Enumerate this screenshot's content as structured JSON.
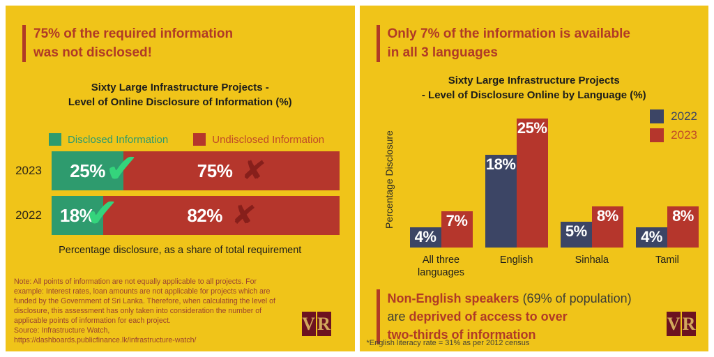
{
  "colors": {
    "yellow": "#F0C419",
    "headline-red": "#B03A26",
    "bar-red": "#B5362C",
    "bar-green": "#2E9B6E",
    "bar-navy": "#3C4565",
    "check-green": "#34D47C",
    "cross-maroon": "#871F1B",
    "logo-maroon": "#6C1220",
    "logo-gold": "#D2A85C",
    "note-red": "#9A4330",
    "text-black": "#1D1D1B"
  },
  "icons": {
    "check": "✔",
    "cross": "✘"
  },
  "brand": {
    "letter_v": "V",
    "letter_r": "R"
  },
  "left": {
    "headline": "75% of the required information\nwas not disclosed!",
    "chart_title": "Sixty Large Infrastructure Projects -\nLevel of Online Disclosure of Information (%)",
    "legend": {
      "disclosed": "Disclosed Information",
      "undisclosed": "Undisclosed Information"
    },
    "rows": [
      {
        "year": "2023",
        "disclosed_label": "25%",
        "undisclosed_label": "75%"
      },
      {
        "year": "2022",
        "disclosed_label": "18%",
        "undisclosed_label": "82%"
      }
    ],
    "caption": "Percentage disclosure, as a share of total requirement",
    "note": "Note: All points of information are not equally applicable to all projects. For example: Interest rates, loan amounts are not applicable for projects which are funded by the Government of Sri Lanka. Therefore, when calculating the level of disclosure, this assessment has only taken into consideration the number of applicable points of information for each project.",
    "source_line1": "Source: Infrastructure Watch,",
    "source_line2": "https://dashboards.publicfinance.lk/infrastructure-watch/"
  },
  "right": {
    "headline": "Only 7% of the information is available\nin all 3 languages",
    "chart_title": "Sixty Large Infrastructure Projects\n- Level of Disclosure Online by Language (%)",
    "legend": {
      "y2022": "2022",
      "y2023": "2023"
    },
    "ylabel": "Percentage Disclosure",
    "groups": [
      {
        "category": "All three\nlanguages",
        "v2022_label": "4%",
        "v2023_label": "7%"
      },
      {
        "category": "English",
        "v2022_label": "18%",
        "v2023_label": "25%"
      },
      {
        "category": "Sinhala",
        "v2022_label": "5%",
        "v2023_label": "8%"
      },
      {
        "category": "Tamil",
        "v2022_label": "4%",
        "v2023_label": "8%"
      }
    ],
    "statement": {
      "line1_bold": "Non-English speakers",
      "line1_plain": " (69% of population)",
      "line2_plain": "are ",
      "line2_bold": "deprived of access to over",
      "line3_bold": "two-thirds of information"
    },
    "footnote": "*English literacy rate = 31% as per 2012 census"
  },
  "chart_data": [
    {
      "type": "bar",
      "orientation": "horizontal",
      "stacked": true,
      "title": "Sixty Large Infrastructure Projects - Level of Online Disclosure of Information (%)",
      "categories": [
        "2023",
        "2022"
      ],
      "series": [
        {
          "name": "Disclosed Information",
          "values": [
            25,
            18
          ],
          "color": "#2E9B6E"
        },
        {
          "name": "Undisclosed Information",
          "values": [
            75,
            82
          ],
          "color": "#B5362C"
        }
      ],
      "xlabel": "Percentage disclosure, as a share of total requirement",
      "xlim": [
        0,
        100
      ],
      "legend_position": "top",
      "grid": false
    },
    {
      "type": "bar",
      "orientation": "vertical",
      "grouped": true,
      "title": "Sixty Large Infrastructure Projects - Level of Disclosure Online by Language (%)",
      "categories": [
        "All three languages",
        "English",
        "Sinhala",
        "Tamil"
      ],
      "series": [
        {
          "name": "2022",
          "values": [
            4,
            18,
            5,
            4
          ],
          "color": "#3C4565"
        },
        {
          "name": "2023",
          "values": [
            7,
            25,
            8,
            8
          ],
          "color": "#B5362C"
        }
      ],
      "ylabel": "Percentage Disclosure",
      "ylim": [
        0,
        27
      ],
      "legend_position": "top-right",
      "grid": false
    }
  ]
}
